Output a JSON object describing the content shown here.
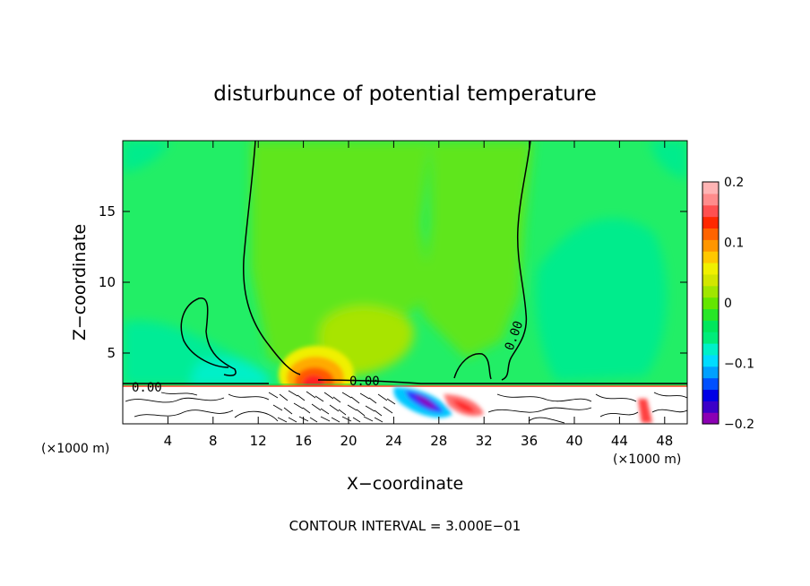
{
  "chart_data": {
    "type": "heatmap",
    "title": "disturbunce of potential temperature",
    "xlabel": "X−coordinate",
    "ylabel": "Z−coordinate",
    "x_unit_left": "(×1000 m)",
    "x_unit_right": "(×1000 m)",
    "xlim": [
      0,
      50
    ],
    "ylim": [
      0,
      20
    ],
    "x_ticks": [
      4,
      8,
      12,
      16,
      20,
      24,
      28,
      32,
      36,
      40,
      44,
      48
    ],
    "y_ticks": [
      5,
      10,
      15
    ],
    "colorbar": {
      "range": [
        -0.2,
        0.2
      ],
      "tick_values": [
        0.2,
        0.1,
        0,
        -0.1,
        -0.2
      ],
      "tick_labels": [
        "0.2",
        "0.1",
        "0",
        "−0.1",
        "−0.2"
      ],
      "colors": [
        "#8c00b4",
        "#3c00c8",
        "#0000e6",
        "#0050ff",
        "#00a0ff",
        "#00dcff",
        "#00f0c8",
        "#00ec7a",
        "#00e65c",
        "#28e628",
        "#64e600",
        "#a0e600",
        "#d2e600",
        "#f0f000",
        "#ffc800",
        "#ff9600",
        "#ff6400",
        "#ff2800",
        "#ff5050",
        "#ff8c8c",
        "#ffb4b4"
      ]
    },
    "contour_labels": [
      {
        "text": "0.00",
        "x": 2.3,
        "z": 2.6
      },
      {
        "text": "0.00",
        "x": 21.5,
        "z": 3.0
      },
      {
        "text": "0.00",
        "x": 35.2,
        "z": 6.5
      }
    ],
    "features": [
      {
        "kind": "warm-core",
        "x": 17,
        "z": 3.2,
        "value": 0.2
      },
      {
        "kind": "cold-patch",
        "x": 27,
        "z": 1.8,
        "value": -0.2
      },
      {
        "kind": "warm-patch",
        "x": 31,
        "z": 1.0,
        "value": 0.15
      }
    ],
    "contour_interval_text": "CONTOUR INTERVAL = 3.000E−01"
  }
}
